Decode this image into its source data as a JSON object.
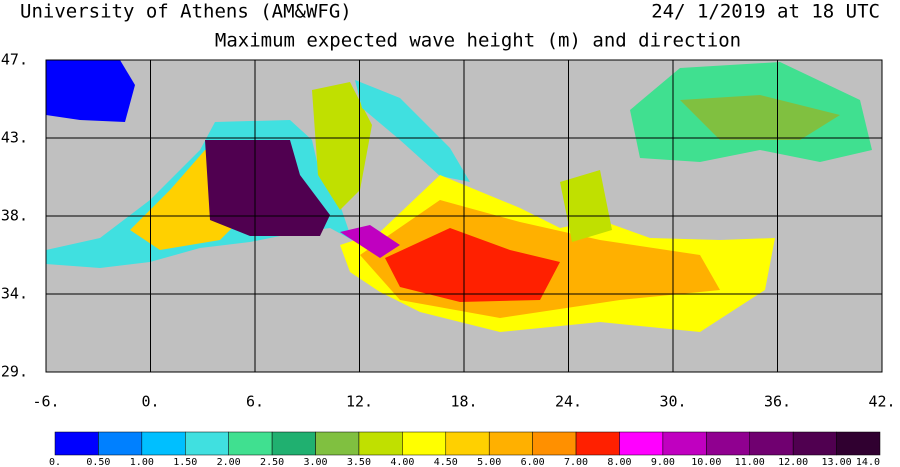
{
  "header": {
    "institution": "University of Athens (AM&WFG)",
    "datetime": "24/ 1/2019 at 18 UTC",
    "title": "Maximum expected wave height (m) and direction"
  },
  "map": {
    "xlim": [
      -6,
      42
    ],
    "ylim": [
      29,
      47
    ],
    "xticks": [
      {
        "value": -6,
        "label": "-6."
      },
      {
        "value": 0,
        "label": "0."
      },
      {
        "value": 6,
        "label": "6."
      },
      {
        "value": 12,
        "label": "12."
      },
      {
        "value": 18,
        "label": "18."
      },
      {
        "value": 24,
        "label": "24."
      },
      {
        "value": 30,
        "label": "30."
      },
      {
        "value": 36,
        "label": "36."
      },
      {
        "value": 42,
        "label": "42."
      }
    ],
    "yticks": [
      {
        "value": 47,
        "label": "47."
      },
      {
        "value": 42.5,
        "label": "43."
      },
      {
        "value": 38,
        "label": "38."
      },
      {
        "value": 33.5,
        "label": "34."
      },
      {
        "value": 29,
        "label": "29."
      }
    ],
    "grid": true
  },
  "colorbar": {
    "levels": [
      {
        "value": 0,
        "label": "0."
      },
      {
        "value": 0.5,
        "label": "0.50"
      },
      {
        "value": 1,
        "label": "1.00"
      },
      {
        "value": 1.5,
        "label": "1.50"
      },
      {
        "value": 2,
        "label": "2.00"
      },
      {
        "value": 2.5,
        "label": "2.50"
      },
      {
        "value": 3,
        "label": "3.00"
      },
      {
        "value": 3.5,
        "label": "3.50"
      },
      {
        "value": 4,
        "label": "4.00"
      },
      {
        "value": 4.5,
        "label": "4.50"
      },
      {
        "value": 5,
        "label": "5.00"
      },
      {
        "value": 6,
        "label": "6.00"
      },
      {
        "value": 7,
        "label": "7.00"
      },
      {
        "value": 8,
        "label": "8.00"
      },
      {
        "value": 9,
        "label": "9.00"
      },
      {
        "value": 10,
        "label": "10.00"
      },
      {
        "value": 11,
        "label": "11.00"
      },
      {
        "value": 12,
        "label": "12.00"
      },
      {
        "value": 13,
        "label": "13.00"
      },
      {
        "value": 14,
        "label": "14.0"
      }
    ],
    "colors": [
      "#0000ff",
      "#0080ff",
      "#00bfff",
      "#40e0e0",
      "#40e090",
      "#20b070",
      "#80c040",
      "#c0e000",
      "#ffff00",
      "#ffd000",
      "#ffb000",
      "#ff9000",
      "#ff2000",
      "#ff00ff",
      "#c000c0",
      "#900090",
      "#700070",
      "#500050",
      "#300030"
    ]
  }
}
